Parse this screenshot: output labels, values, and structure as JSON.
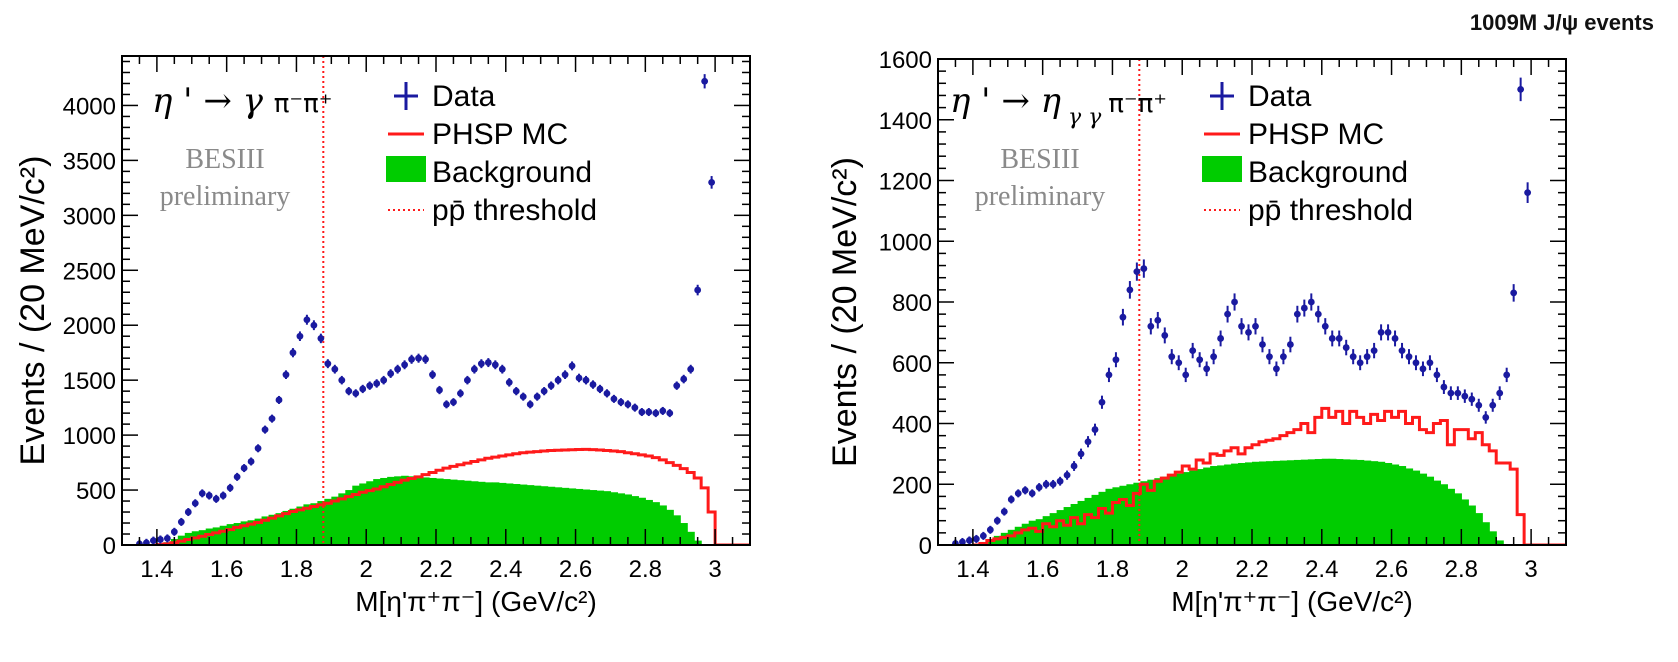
{
  "header": {
    "note": "1009M J/ψ events"
  },
  "chart_data": [
    {
      "type": "histogram",
      "decay_label": {
        "prefix": "η ' → γ ",
        "particles": "π⁻π⁺"
      },
      "preliminary": [
        "BESIII",
        "preliminary"
      ],
      "xlabel": "M[η'π⁺π⁻] (GeV/c²)",
      "ylabel": "Events / (20 MeV/c²)",
      "xlim": [
        1.3,
        3.1
      ],
      "ylim": [
        0,
        4450
      ],
      "xticks": [
        1.4,
        1.6,
        1.8,
        2,
        2.2,
        2.4,
        2.6,
        2.8,
        3
      ],
      "yticks": [
        0,
        500,
        1000,
        1500,
        2000,
        2500,
        3000,
        3500,
        4000
      ],
      "threshold": 1.877,
      "legend": [
        "Data",
        "PHSP MC",
        "Background",
        "pp̄ threshold"
      ],
      "colors": {
        "data": "#1a1aa0",
        "mc": "#ff1a1a",
        "background": "#00cc00",
        "threshold": "#ff1a1a"
      },
      "data_points": {
        "x": [
          1.33,
          1.35,
          1.37,
          1.39,
          1.41,
          1.43,
          1.45,
          1.47,
          1.49,
          1.51,
          1.53,
          1.55,
          1.57,
          1.59,
          1.61,
          1.63,
          1.65,
          1.67,
          1.69,
          1.71,
          1.73,
          1.75,
          1.77,
          1.79,
          1.81,
          1.83,
          1.85,
          1.87,
          1.89,
          1.91,
          1.93,
          1.95,
          1.97,
          1.99,
          2.01,
          2.03,
          2.05,
          2.07,
          2.09,
          2.11,
          2.13,
          2.15,
          2.17,
          2.19,
          2.21,
          2.23,
          2.25,
          2.27,
          2.29,
          2.31,
          2.33,
          2.35,
          2.37,
          2.39,
          2.41,
          2.43,
          2.45,
          2.47,
          2.49,
          2.51,
          2.53,
          2.55,
          2.57,
          2.59,
          2.61,
          2.63,
          2.65,
          2.67,
          2.69,
          2.71,
          2.73,
          2.75,
          2.77,
          2.79,
          2.81,
          2.83,
          2.85,
          2.87,
          2.89,
          2.91,
          2.93,
          2.95,
          2.97,
          2.99
        ],
        "y": [
          0,
          10,
          20,
          40,
          50,
          60,
          120,
          210,
          300,
          380,
          470,
          450,
          420,
          450,
          520,
          620,
          700,
          760,
          880,
          1050,
          1150,
          1320,
          1550,
          1750,
          1900,
          2050,
          2000,
          1880,
          1650,
          1600,
          1500,
          1400,
          1380,
          1420,
          1450,
          1470,
          1500,
          1560,
          1600,
          1640,
          1690,
          1700,
          1690,
          1550,
          1410,
          1280,
          1300,
          1380,
          1500,
          1600,
          1650,
          1660,
          1640,
          1600,
          1480,
          1400,
          1350,
          1280,
          1350,
          1400,
          1450,
          1500,
          1550,
          1630,
          1520,
          1500,
          1460,
          1420,
          1380,
          1330,
          1300,
          1280,
          1250,
          1210,
          1210,
          1200,
          1220,
          1200,
          1450,
          1510,
          1600,
          2320,
          4220,
          3300
        ]
      },
      "mc_hist": {
        "x": [
          1.4,
          1.42,
          1.44,
          1.46,
          1.48,
          1.5,
          1.52,
          1.54,
          1.56,
          1.58,
          1.6,
          1.62,
          1.64,
          1.66,
          1.68,
          1.7,
          1.72,
          1.74,
          1.76,
          1.78,
          1.8,
          1.82,
          1.84,
          1.86,
          1.88,
          1.9,
          1.92,
          1.94,
          1.96,
          1.98,
          2.0,
          2.02,
          2.04,
          2.06,
          2.08,
          2.1,
          2.12,
          2.14,
          2.16,
          2.18,
          2.2,
          2.22,
          2.24,
          2.26,
          2.28,
          2.3,
          2.32,
          2.34,
          2.36,
          2.38,
          2.4,
          2.42,
          2.44,
          2.46,
          2.48,
          2.5,
          2.52,
          2.54,
          2.56,
          2.58,
          2.6,
          2.62,
          2.64,
          2.66,
          2.68,
          2.7,
          2.72,
          2.74,
          2.76,
          2.78,
          2.8,
          2.82,
          2.84,
          2.86,
          2.88,
          2.9,
          2.92,
          2.94,
          2.96,
          2.98
        ],
        "y": [
          3,
          10,
          20,
          35,
          50,
          65,
          80,
          95,
          110,
          125,
          140,
          160,
          175,
          190,
          205,
          225,
          245,
          265,
          285,
          305,
          320,
          335,
          350,
          365,
          380,
          400,
          420,
          440,
          460,
          480,
          495,
          510,
          530,
          550,
          570,
          590,
          605,
          620,
          640,
          660,
          680,
          700,
          715,
          730,
          745,
          760,
          775,
          790,
          800,
          810,
          820,
          830,
          840,
          845,
          850,
          855,
          860,
          862,
          865,
          867,
          869,
          870,
          868,
          865,
          860,
          855,
          850,
          840,
          830,
          820,
          810,
          795,
          775,
          750,
          725,
          695,
          660,
          610,
          520,
          300
        ]
      },
      "bkg_hist": {
        "x": [
          1.4,
          1.42,
          1.44,
          1.46,
          1.48,
          1.5,
          1.52,
          1.54,
          1.56,
          1.58,
          1.6,
          1.62,
          1.64,
          1.66,
          1.68,
          1.7,
          1.72,
          1.74,
          1.76,
          1.78,
          1.8,
          1.82,
          1.84,
          1.86,
          1.88,
          1.9,
          1.92,
          1.94,
          1.96,
          1.98,
          2.0,
          2.02,
          2.04,
          2.06,
          2.08,
          2.1,
          2.12,
          2.14,
          2.16,
          2.18,
          2.2,
          2.22,
          2.24,
          2.26,
          2.28,
          2.3,
          2.32,
          2.34,
          2.36,
          2.38,
          2.4,
          2.42,
          2.44,
          2.46,
          2.48,
          2.5,
          2.52,
          2.54,
          2.56,
          2.58,
          2.6,
          2.62,
          2.64,
          2.66,
          2.68,
          2.7,
          2.72,
          2.74,
          2.76,
          2.78,
          2.8,
          2.82,
          2.84,
          2.86,
          2.88,
          2.9,
          2.92,
          2.94,
          2.96,
          2.98
        ],
        "y": [
          0,
          25,
          55,
          85,
          110,
          125,
          135,
          150,
          160,
          175,
          190,
          200,
          215,
          225,
          240,
          260,
          275,
          290,
          310,
          330,
          350,
          370,
          380,
          400,
          420,
          440,
          470,
          500,
          540,
          560,
          580,
          600,
          610,
          620,
          625,
          630,
          625,
          620,
          615,
          610,
          605,
          600,
          595,
          590,
          585,
          580,
          575,
          570,
          570,
          565,
          560,
          555,
          550,
          545,
          540,
          535,
          530,
          525,
          520,
          515,
          510,
          505,
          500,
          495,
          490,
          480,
          470,
          460,
          445,
          430,
          410,
          390,
          360,
          320,
          270,
          200,
          120,
          40,
          0,
          0
        ]
      }
    },
    {
      "type": "histogram",
      "decay_label": {
        "prefix": "η ' → η",
        "sub": "γ γ",
        "particles": "π⁻π⁺"
      },
      "preliminary": [
        "BESIII",
        "preliminary"
      ],
      "xlabel": "M[η'π⁺π⁻] (GeV/c²)",
      "ylabel": "Events / (20 MeV/c²)",
      "xlim": [
        1.3,
        3.1
      ],
      "ylim": [
        0,
        1600
      ],
      "xticks": [
        1.4,
        1.6,
        1.8,
        2,
        2.2,
        2.4,
        2.6,
        2.8,
        3
      ],
      "yticks": [
        0,
        200,
        400,
        600,
        800,
        1000,
        1200,
        1400,
        1600
      ],
      "threshold": 1.877,
      "legend": [
        "Data",
        "PHSP MC",
        "Background",
        "pp̄ threshold"
      ],
      "colors": {
        "data": "#1a1aa0",
        "mc": "#ff1a1a",
        "background": "#00cc00",
        "threshold": "#ff1a1a"
      },
      "data_points": {
        "x": [
          1.33,
          1.35,
          1.37,
          1.39,
          1.41,
          1.43,
          1.45,
          1.47,
          1.49,
          1.51,
          1.53,
          1.55,
          1.57,
          1.59,
          1.61,
          1.63,
          1.65,
          1.67,
          1.69,
          1.71,
          1.73,
          1.75,
          1.77,
          1.79,
          1.81,
          1.83,
          1.85,
          1.87,
          1.89,
          1.91,
          1.93,
          1.95,
          1.97,
          1.99,
          2.01,
          2.03,
          2.05,
          2.07,
          2.09,
          2.11,
          2.13,
          2.15,
          2.17,
          2.19,
          2.21,
          2.23,
          2.25,
          2.27,
          2.29,
          2.31,
          2.33,
          2.35,
          2.37,
          2.39,
          2.41,
          2.43,
          2.45,
          2.47,
          2.49,
          2.51,
          2.53,
          2.55,
          2.57,
          2.59,
          2.61,
          2.63,
          2.65,
          2.67,
          2.69,
          2.71,
          2.73,
          2.75,
          2.77,
          2.79,
          2.81,
          2.83,
          2.85,
          2.87,
          2.89,
          2.91,
          2.93,
          2.95,
          2.97,
          2.99
        ],
        "y": [
          0,
          5,
          10,
          15,
          20,
          30,
          50,
          80,
          110,
          150,
          170,
          180,
          170,
          190,
          200,
          200,
          210,
          230,
          260,
          300,
          340,
          380,
          470,
          560,
          610,
          750,
          840,
          900,
          910,
          720,
          740,
          690,
          620,
          600,
          560,
          640,
          610,
          580,
          620,
          680,
          760,
          800,
          720,
          700,
          720,
          660,
          620,
          580,
          620,
          660,
          760,
          780,
          800,
          760,
          720,
          680,
          680,
          650,
          620,
          600,
          620,
          640,
          700,
          700,
          680,
          640,
          620,
          600,
          580,
          600,
          560,
          520,
          500,
          500,
          490,
          480,
          460,
          420,
          460,
          500,
          560,
          830,
          1500,
          1160
        ]
      },
      "mc_hist": {
        "x": [
          1.4,
          1.42,
          1.44,
          1.46,
          1.48,
          1.5,
          1.52,
          1.54,
          1.56,
          1.58,
          1.6,
          1.62,
          1.64,
          1.66,
          1.68,
          1.7,
          1.72,
          1.74,
          1.76,
          1.78,
          1.8,
          1.82,
          1.84,
          1.86,
          1.88,
          1.9,
          1.92,
          1.94,
          1.96,
          1.98,
          2.0,
          2.02,
          2.04,
          2.06,
          2.08,
          2.1,
          2.12,
          2.14,
          2.16,
          2.18,
          2.2,
          2.22,
          2.24,
          2.26,
          2.28,
          2.3,
          2.32,
          2.34,
          2.36,
          2.38,
          2.4,
          2.42,
          2.44,
          2.46,
          2.48,
          2.5,
          2.52,
          2.54,
          2.56,
          2.58,
          2.6,
          2.62,
          2.64,
          2.66,
          2.68,
          2.7,
          2.72,
          2.74,
          2.76,
          2.78,
          2.8,
          2.82,
          2.84,
          2.86,
          2.88,
          2.9,
          2.92,
          2.94,
          2.96,
          2.98
        ],
        "y": [
          0,
          5,
          15,
          20,
          25,
          30,
          40,
          50,
          55,
          45,
          70,
          60,
          80,
          65,
          90,
          70,
          100,
          90,
          120,
          105,
          140,
          150,
          130,
          170,
          200,
          180,
          210,
          220,
          230,
          240,
          260,
          250,
          280,
          270,
          300,
          295,
          310,
          320,
          300,
          320,
          330,
          340,
          345,
          350,
          360,
          370,
          380,
          400,
          370,
          420,
          450,
          420,
          440,
          400,
          440,
          420,
          400,
          430,
          410,
          440,
          420,
          440,
          400,
          420,
          380,
          370,
          400,
          410,
          330,
          380,
          380,
          350,
          370,
          330,
          310,
          270,
          270,
          250,
          100,
          0
        ]
      },
      "bkg_hist": {
        "x": [
          1.4,
          1.42,
          1.44,
          1.46,
          1.48,
          1.5,
          1.52,
          1.54,
          1.56,
          1.58,
          1.6,
          1.62,
          1.64,
          1.66,
          1.68,
          1.7,
          1.72,
          1.74,
          1.76,
          1.78,
          1.8,
          1.82,
          1.84,
          1.86,
          1.88,
          1.9,
          1.92,
          1.94,
          1.96,
          1.98,
          2.0,
          2.02,
          2.04,
          2.06,
          2.08,
          2.1,
          2.12,
          2.14,
          2.16,
          2.18,
          2.2,
          2.22,
          2.24,
          2.26,
          2.28,
          2.3,
          2.32,
          2.34,
          2.36,
          2.38,
          2.4,
          2.42,
          2.44,
          2.46,
          2.48,
          2.5,
          2.52,
          2.54,
          2.56,
          2.58,
          2.6,
          2.62,
          2.64,
          2.66,
          2.68,
          2.7,
          2.72,
          2.74,
          2.76,
          2.78,
          2.8,
          2.82,
          2.84,
          2.86,
          2.88,
          2.9,
          2.92,
          2.94,
          2.96,
          2.98
        ],
        "y": [
          5,
          10,
          20,
          30,
          40,
          50,
          60,
          70,
          80,
          85,
          95,
          105,
          115,
          125,
          135,
          145,
          155,
          165,
          175,
          185,
          190,
          195,
          200,
          205,
          210,
          215,
          220,
          225,
          230,
          235,
          240,
          245,
          250,
          255,
          260,
          262,
          265,
          268,
          270,
          272,
          274,
          275,
          276,
          277,
          278,
          279,
          280,
          281,
          282,
          283,
          284,
          284,
          283,
          282,
          281,
          280,
          278,
          276,
          274,
          270,
          265,
          260,
          252,
          245,
          235,
          225,
          212,
          200,
          185,
          170,
          150,
          130,
          105,
          75,
          45,
          15,
          0,
          0,
          0,
          0
        ]
      }
    }
  ]
}
